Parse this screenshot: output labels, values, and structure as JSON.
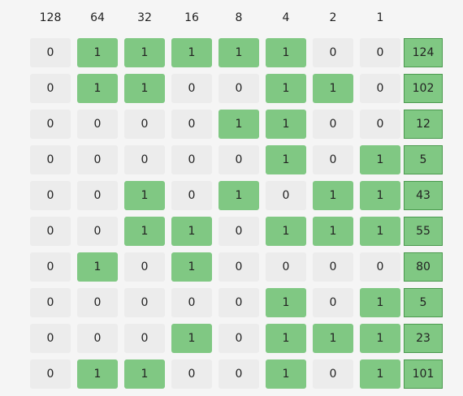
{
  "columns": [
    "128",
    "64",
    "32",
    "16",
    "8",
    "4",
    "2",
    "1"
  ],
  "rows": [
    {
      "bits": [
        "0",
        "1",
        "1",
        "1",
        "1",
        "1",
        "0",
        "0"
      ],
      "target": "124"
    },
    {
      "bits": [
        "0",
        "1",
        "1",
        "0",
        "0",
        "1",
        "1",
        "0"
      ],
      "target": "102"
    },
    {
      "bits": [
        "0",
        "0",
        "0",
        "0",
        "1",
        "1",
        "0",
        "0"
      ],
      "target": "12"
    },
    {
      "bits": [
        "0",
        "0",
        "0",
        "0",
        "0",
        "1",
        "0",
        "1"
      ],
      "target": "5"
    },
    {
      "bits": [
        "0",
        "0",
        "1",
        "0",
        "1",
        "0",
        "1",
        "1"
      ],
      "target": "43"
    },
    {
      "bits": [
        "0",
        "0",
        "1",
        "1",
        "0",
        "1",
        "1",
        "1"
      ],
      "target": "55"
    },
    {
      "bits": [
        "0",
        "1",
        "0",
        "1",
        "0",
        "0",
        "0",
        "0"
      ],
      "target": "80"
    },
    {
      "bits": [
        "0",
        "0",
        "0",
        "0",
        "0",
        "1",
        "0",
        "1"
      ],
      "target": "5"
    },
    {
      "bits": [
        "0",
        "0",
        "0",
        "1",
        "0",
        "1",
        "1",
        "1"
      ],
      "target": "23"
    },
    {
      "bits": [
        "0",
        "1",
        "1",
        "0",
        "0",
        "1",
        "0",
        "1"
      ],
      "target": "101"
    }
  ],
  "colors": {
    "bit_on": "#80c883",
    "bit_off": "#ececec",
    "target_bg": "#80c883",
    "target_border": "#4a9a4e",
    "page_bg": "#f5f5f5"
  }
}
